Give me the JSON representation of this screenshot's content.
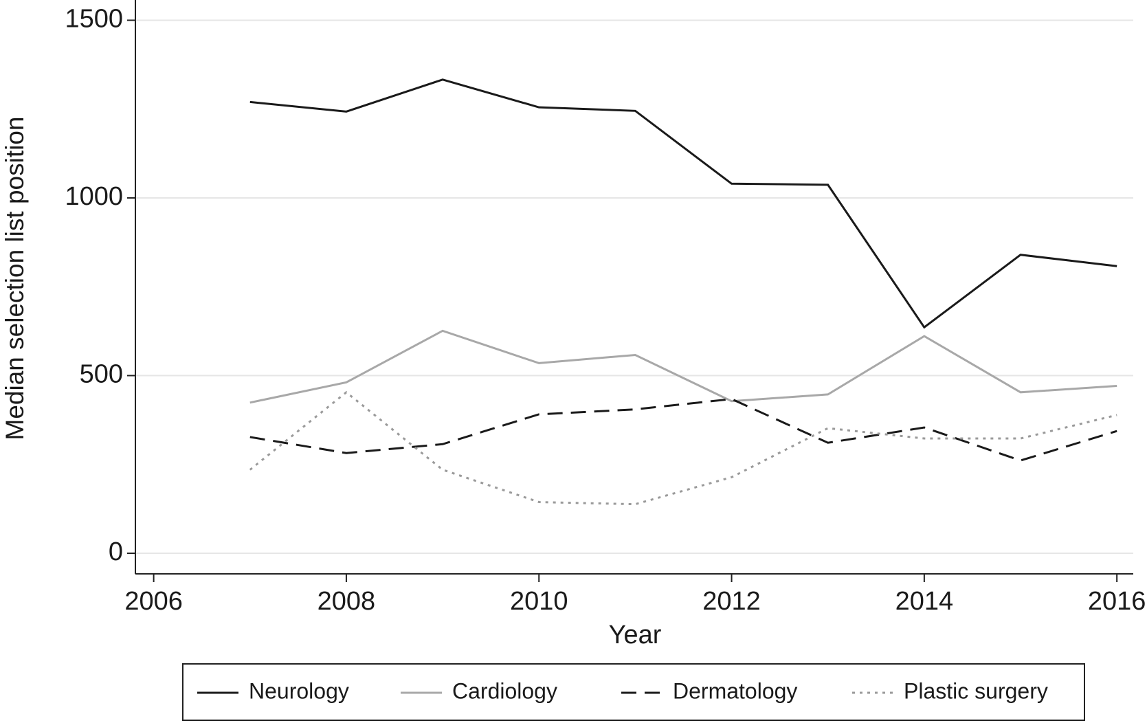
{
  "chart_data": {
    "type": "line",
    "x_label": "Year",
    "y_label": "Median selection list position",
    "x": [
      2007,
      2008,
      2009,
      2010,
      2011,
      2012,
      2013,
      2014,
      2015,
      2016
    ],
    "series": [
      {
        "name": "Neurology",
        "color": "#1a1a1a",
        "dash": "solid",
        "values": [
          1270,
          1243,
          1333,
          1255,
          1245,
          1040,
          1037,
          636,
          840,
          808
        ]
      },
      {
        "name": "Cardiology",
        "color": "#a8a8a8",
        "dash": "solid",
        "values": [
          424,
          481,
          626,
          535,
          558,
          428,
          447,
          611,
          453,
          471
        ]
      },
      {
        "name": "Dermatology",
        "color": "#1a1a1a",
        "dash": "dashed",
        "values": [
          327,
          282,
          307,
          391,
          405,
          434,
          311,
          354,
          261,
          344
        ]
      },
      {
        "name": "Plastic surgery",
        "color": "#9a9a9a",
        "dash": "dotted",
        "values": [
          235,
          453,
          235,
          144,
          138,
          214,
          352,
          323,
          323,
          389
        ]
      }
    ],
    "xlim": [
      2005.81,
      2016.17
    ],
    "xticks": [
      2006,
      2008,
      2010,
      2012,
      2014,
      2016
    ],
    "ylim": [
      -58,
      1557
    ],
    "yticks": [
      0,
      500,
      1000,
      1500
    ],
    "grid": true
  }
}
